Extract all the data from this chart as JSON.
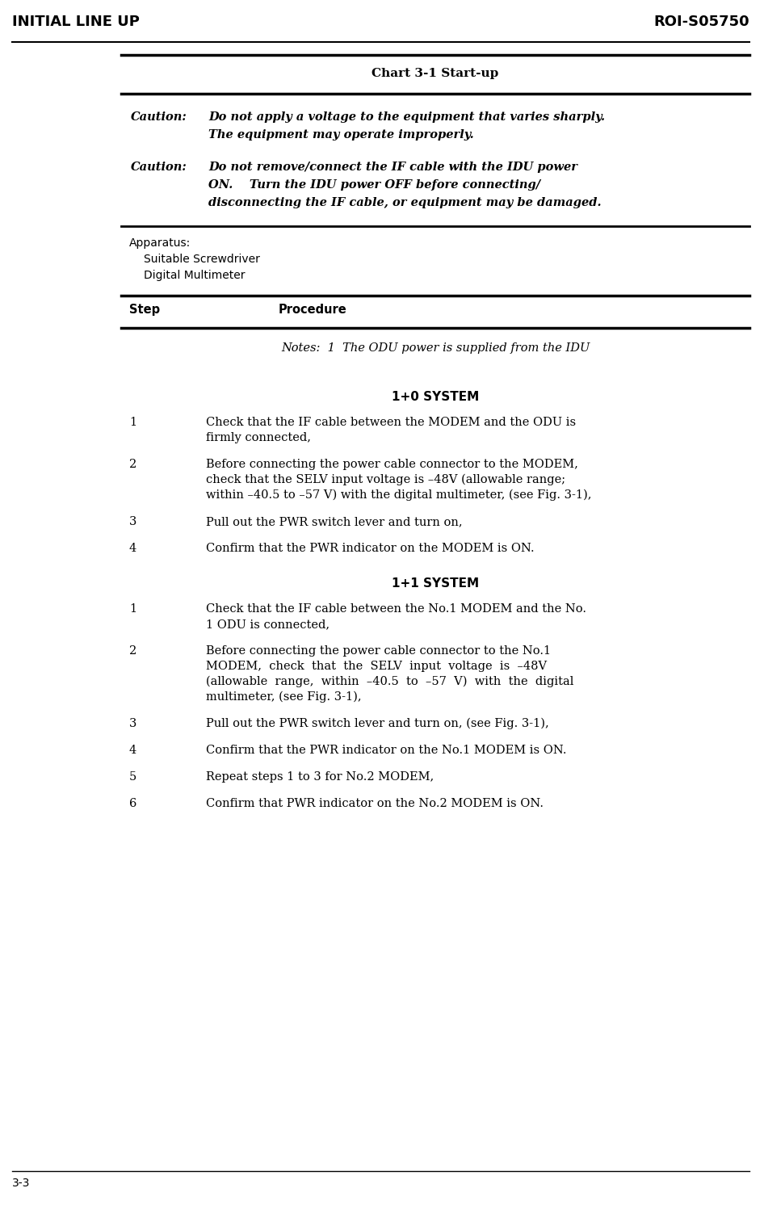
{
  "header_left": "INITIAL LINE UP",
  "header_right": "ROI-S05750",
  "footer_left": "3-3",
  "chart_title": "Chart 3-1 Start-up",
  "caution1_label": "Caution:",
  "caution1_line1": "Do not apply a voltage to the equipment that varies sharply.",
  "caution1_line2": "The equipment may operate improperly.",
  "caution2_label": "Caution:",
  "caution2_line1": "Do not remove/connect the IF cable with the IDU power",
  "caution2_line2": "ON.    Turn the IDU power OFF before connecting/",
  "caution2_line3": "disconnecting the IF cable, or equipment may be damaged.",
  "apparatus_label": "Apparatus:",
  "apparatus_item1": "Suitable Screwdriver",
  "apparatus_item2": "Digital Multimeter",
  "col_step": "Step",
  "col_procedure": "Procedure",
  "notes": "Notes:  1  The ODU power is supplied from the IDU",
  "system1_title": "1+0 SYSTEM",
  "system1_steps": [
    {
      "num": "1",
      "text": "Check that the IF cable between the MODEM and the ODU is\nfirmly connected,"
    },
    {
      "num": "2",
      "text": "Before connecting the power cable connector to the MODEM,\ncheck that the SELV input voltage is –48V (allowable range;\nwithin –40.5 to –57 V) with the digital multimeter, (see Fig. 3-1),"
    },
    {
      "num": "3",
      "text": "Pull out the PWR switch lever and turn on,"
    },
    {
      "num": "4",
      "text": "Confirm that the PWR indicator on the MODEM is ON."
    }
  ],
  "system2_title": "1+1 SYSTEM",
  "system2_steps": [
    {
      "num": "1",
      "text": "Check that the IF cable between the No.1 MODEM and the No.\n1 ODU is connected,"
    },
    {
      "num": "2",
      "text": "Before connecting the power cable connector to the No.1\nMODEM,  check  that  the  SELV  input  voltage  is  –48V\n(allowable  range,  within  –40.5  to  –57  V)  with  the  digital\nmultimeter, (see Fig. 3-1),"
    },
    {
      "num": "3",
      "text": "Pull out the PWR switch lever and turn on, (see Fig. 3-1),"
    },
    {
      "num": "4",
      "text": "Confirm that the PWR indicator on the No.1 MODEM is ON."
    },
    {
      "num": "5",
      "text": "Repeat steps 1 to 3 for No.2 MODEM,"
    },
    {
      "num": "6",
      "text": "Confirm that PWR indicator on the No.2 MODEM is ON."
    }
  ],
  "bg_color": "#ffffff",
  "text_color": "#000000"
}
